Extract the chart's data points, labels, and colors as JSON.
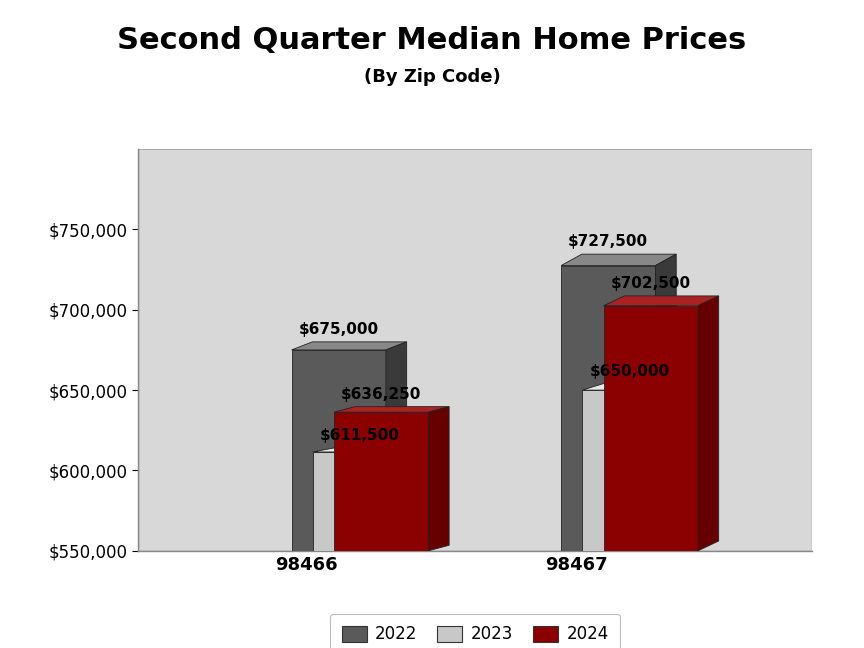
{
  "title": "Second Quarter Median Home Prices",
  "subtitle": "(By Zip Code)",
  "categories": [
    "98466",
    "98467"
  ],
  "years": [
    "2022",
    "2023",
    "2024"
  ],
  "values": {
    "98466": [
      675000,
      611500,
      636250
    ],
    "98467": [
      727500,
      650000,
      702500
    ]
  },
  "bar_colors": [
    "#5a5a5a",
    "#c8c8c8",
    "#8b0000"
  ],
  "bar_top_colors": [
    "#888888",
    "#e8e8e8",
    "#aa2222"
  ],
  "bar_side_colors": [
    "#3a3a3a",
    "#aaaaaa",
    "#660000"
  ],
  "ylim": [
    550000,
    800000
  ],
  "yticks": [
    550000,
    600000,
    650000,
    700000,
    750000
  ],
  "title_fontsize": 22,
  "subtitle_fontsize": 13,
  "legend_labels": [
    "2022",
    "2023",
    "2024"
  ],
  "label_fontsize": 11,
  "bg_panel_color": "#d8d8d8",
  "bg_top_color": "#e8e8e8",
  "bg_side_color": "#c0c0c0"
}
